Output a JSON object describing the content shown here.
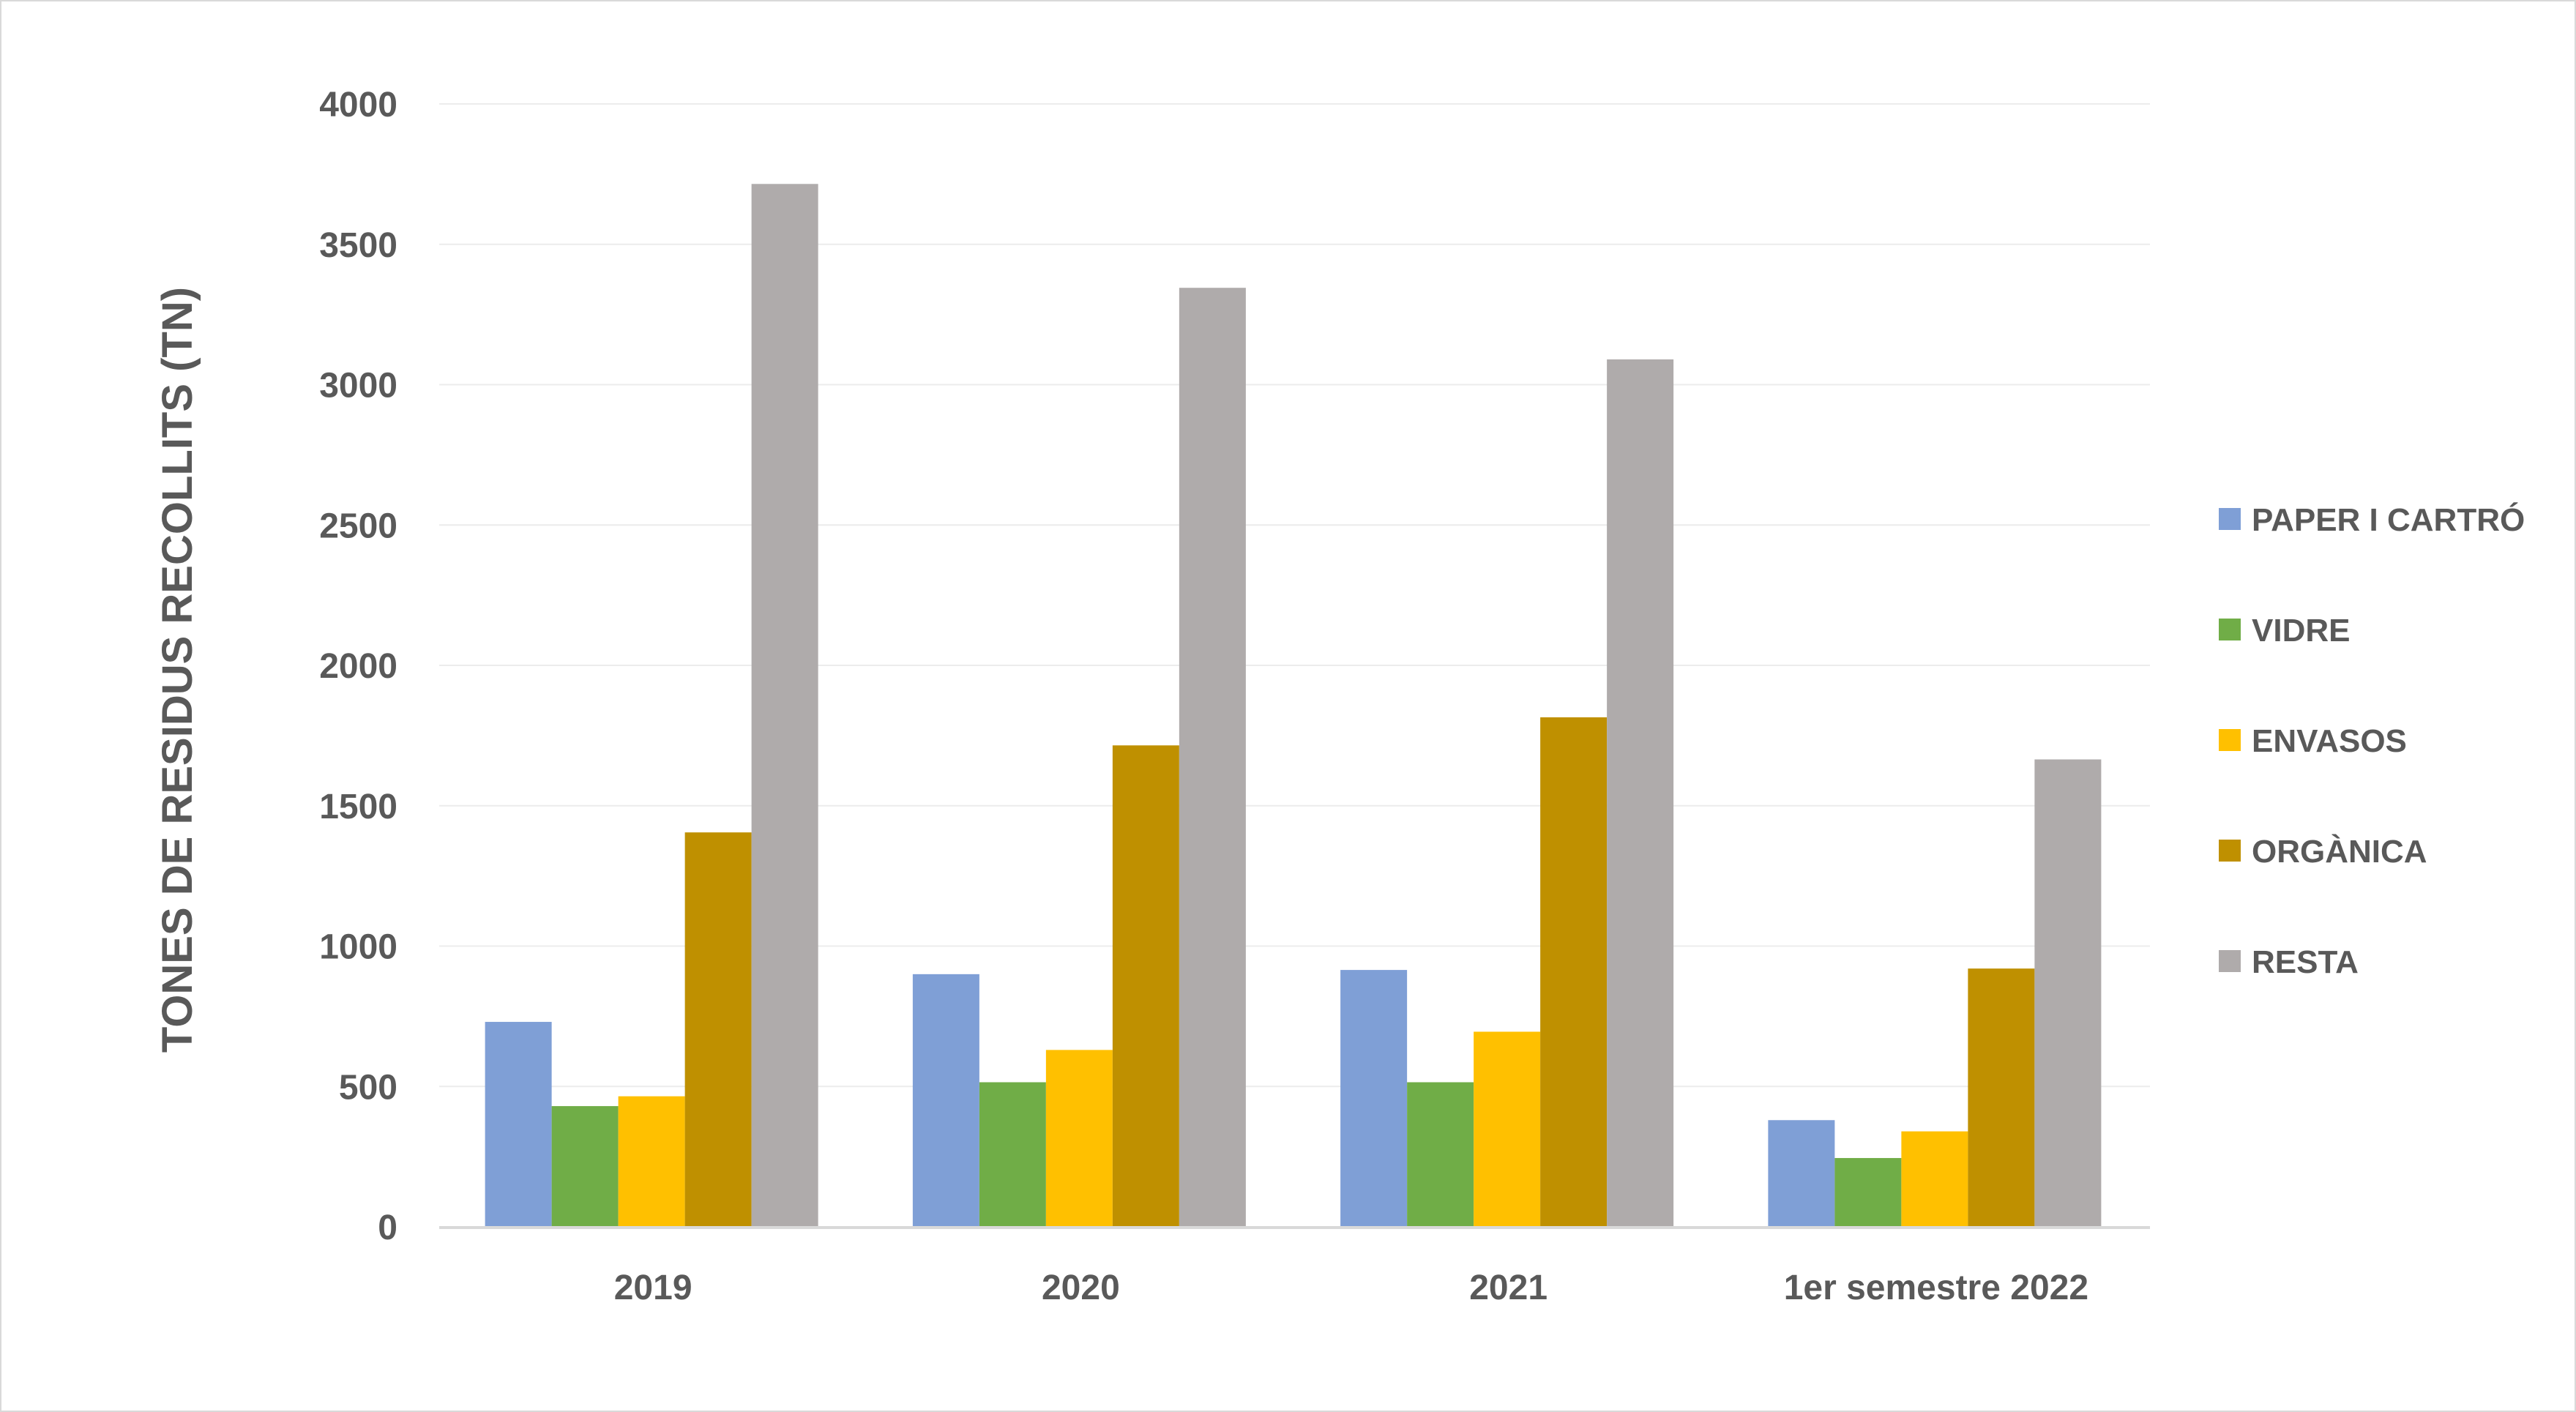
{
  "chart_data": {
    "type": "bar",
    "title": "",
    "xlabel": "",
    "ylabel": "TONES DE RESIDUS RECOLLITS (TN)",
    "ylim": [
      0,
      4000
    ],
    "yticks": [
      0,
      500,
      1000,
      1500,
      2000,
      2500,
      3000,
      3500,
      4000
    ],
    "grid": true,
    "legend_position": "right",
    "categories": [
      "2019",
      "2020",
      "2021",
      "1er semestre 2022"
    ],
    "series": [
      {
        "name": "PAPER I CARTRÓ",
        "color": "#7f9fd6",
        "values": [
          730,
          900,
          915,
          380
        ]
      },
      {
        "name": "VIDRE",
        "color": "#70ad47",
        "values": [
          430,
          515,
          515,
          245
        ]
      },
      {
        "name": "ENVASOS",
        "color": "#ffc000",
        "values": [
          465,
          630,
          695,
          340
        ]
      },
      {
        "name": "ORGÀNICA",
        "color": "#bf9000",
        "values": [
          1405,
          1715,
          1815,
          920
        ]
      },
      {
        "name": "RESTA",
        "color": "#afabab",
        "values": [
          3715,
          3345,
          3090,
          1665
        ]
      }
    ]
  }
}
